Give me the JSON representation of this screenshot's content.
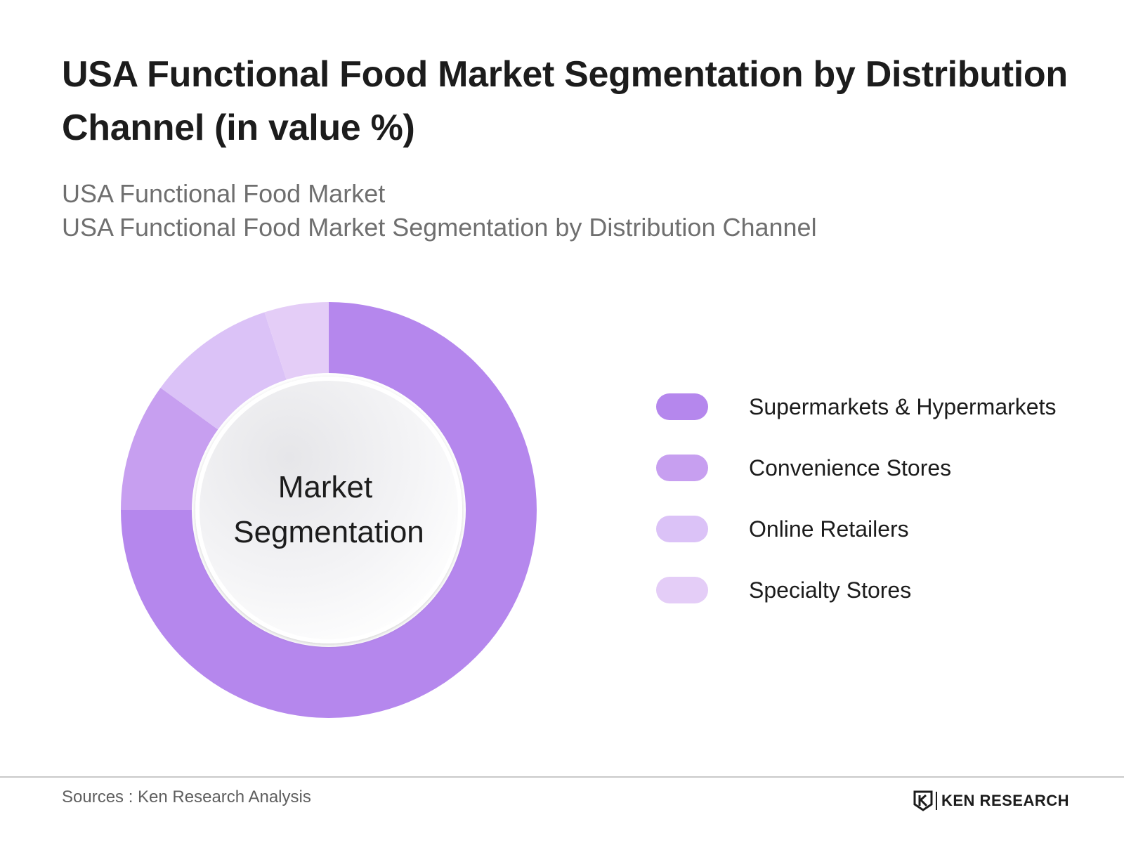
{
  "header": {
    "title": "USA Functional Food Market Segmentation by Distribution Channel (in value %)",
    "subtitle_line1": "USA Functional Food Market",
    "subtitle_line2": "USA Functional Food Market Segmentation by Distribution Channel"
  },
  "chart_data": {
    "type": "pie",
    "style": "donut",
    "center_label_line1": "Market",
    "center_label_line2": "Segmentation",
    "categories": [
      "Supermarkets & Hypermarkets",
      "Convenience Stores",
      "Online Retailers",
      "Specialty Stores"
    ],
    "values": [
      75,
      10,
      10,
      5
    ],
    "unit": "%",
    "colors": [
      "#b587ed",
      "#c79ff0",
      "#dbc2f7",
      "#e4cdf7"
    ],
    "legend_position": "right"
  },
  "footer": {
    "source": "Sources : Ken Research Analysis",
    "brand": "KEN RESEARCH",
    "brand_icon": "ken-research-logo-icon"
  }
}
